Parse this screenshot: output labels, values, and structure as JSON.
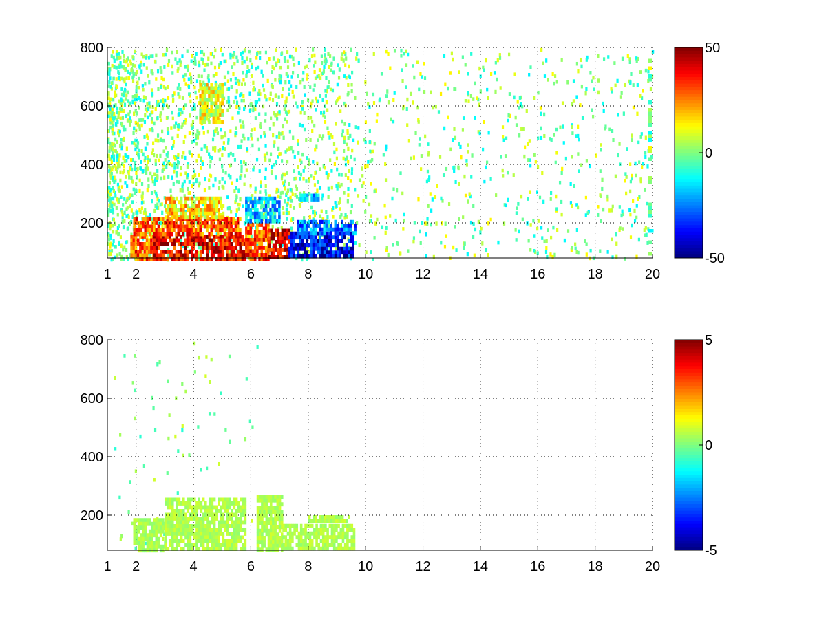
{
  "chart_data": [
    {
      "type": "heatmap",
      "title": "",
      "xlabel": "",
      "ylabel": "",
      "xlim": [
        1,
        20
      ],
      "ylim": [
        80,
        800
      ],
      "x_ticks": [
        "1",
        "2",
        "4",
        "6",
        "8",
        "10",
        "12",
        "14",
        "16",
        "18",
        "20"
      ],
      "y_ticks": [
        "200",
        "400",
        "600",
        "800"
      ],
      "grid": true,
      "colormap": "jet",
      "colorbar": {
        "min": -50,
        "max": 50,
        "ticks": [
          "50",
          "0",
          "-50"
        ]
      },
      "regions": [
        {
          "x": [
            1.8,
            2.6
          ],
          "y": [
            80,
            160
          ],
          "value": 28
        },
        {
          "x": [
            2.6,
            5.8
          ],
          "y": [
            80,
            160
          ],
          "value": 38
        },
        {
          "x": [
            1.9,
            5.6
          ],
          "y": [
            160,
            220
          ],
          "value": 30
        },
        {
          "x": [
            3.0,
            5.0
          ],
          "y": [
            220,
            290
          ],
          "value": 16
        },
        {
          "x": [
            5.8,
            6.6
          ],
          "y": [
            80,
            200
          ],
          "value": 30
        },
        {
          "x": [
            6.6,
            7.3
          ],
          "y": [
            80,
            180
          ],
          "value": 40
        },
        {
          "x": [
            5.8,
            7.0
          ],
          "y": [
            200,
            290
          ],
          "value": -18
        },
        {
          "x": [
            7.3,
            9.6
          ],
          "y": [
            80,
            170
          ],
          "value": -38
        },
        {
          "x": [
            7.6,
            9.6
          ],
          "y": [
            170,
            210
          ],
          "value": -25
        },
        {
          "x": [
            7.7,
            8.5
          ],
          "y": [
            280,
            300
          ],
          "value": -22
        },
        {
          "x": [
            4.2,
            5.0
          ],
          "y": [
            550,
            680
          ],
          "value": 10
        }
      ]
    },
    {
      "type": "heatmap",
      "title": "",
      "xlabel": "",
      "ylabel": "",
      "xlim": [
        1,
        20
      ],
      "ylim": [
        80,
        800
      ],
      "x_ticks": [
        "1",
        "2",
        "4",
        "6",
        "8",
        "10",
        "12",
        "14",
        "16",
        "18",
        "20"
      ],
      "y_ticks": [
        "200",
        "400",
        "600",
        "800"
      ],
      "grid": true,
      "colormap": "jet",
      "colorbar": {
        "min": -5,
        "max": 5,
        "ticks": [
          "5",
          "0",
          "-5"
        ]
      },
      "regions": [
        {
          "x": [
            1.9,
            3.0
          ],
          "y": [
            80,
            190
          ],
          "value": 0.4
        },
        {
          "x": [
            3.0,
            5.8
          ],
          "y": [
            80,
            260
          ],
          "value": 0.5
        },
        {
          "x": [
            6.2,
            7.1
          ],
          "y": [
            80,
            270
          ],
          "value": 0.5
        },
        {
          "x": [
            7.1,
            9.6
          ],
          "y": [
            80,
            170
          ],
          "value": 0.5
        },
        {
          "x": [
            8.0,
            9.4
          ],
          "y": [
            180,
            200
          ],
          "value": 0.5
        }
      ]
    }
  ]
}
